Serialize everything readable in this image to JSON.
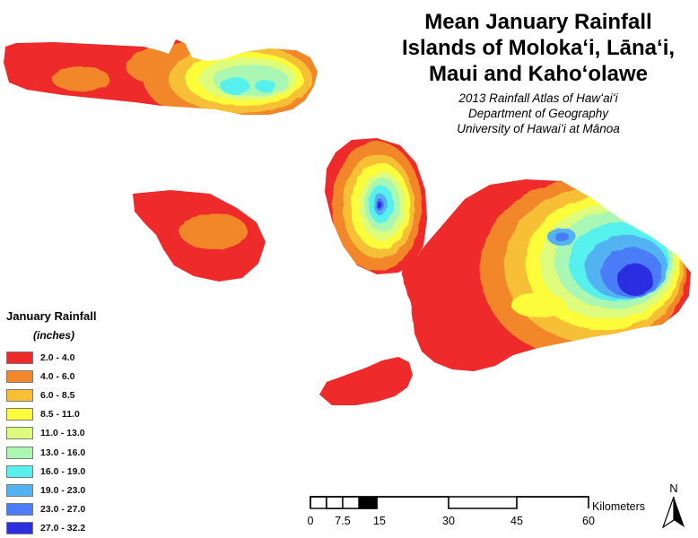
{
  "title": {
    "lines": [
      "Mean January Rainfall",
      "Islands of Molokaʻi, Lānaʻi,",
      "Maui and Kahoʻolawe"
    ],
    "subtitle": [
      "2013 Rainfall Atlas of Hawʻaiʻi",
      "Department of Geography",
      "University of Hawaiʻi at Mānoa"
    ]
  },
  "legend": {
    "title": "January Rainfall",
    "units": "(inches)",
    "classes": [
      {
        "label": "2.0 - 4.0",
        "color": "#ee2a2a"
      },
      {
        "label": "4.0 - 6.0",
        "color": "#f2872c"
      },
      {
        "label": "6.0 - 8.5",
        "color": "#f7bf36"
      },
      {
        "label": "8.5 - 11.0",
        "color": "#fcfc3a"
      },
      {
        "label": "11.0 - 13.0",
        "color": "#ddfc7e"
      },
      {
        "label": "13.0 - 16.0",
        "color": "#a9f7b2"
      },
      {
        "label": "16.0 - 19.0",
        "color": "#57f0ee"
      },
      {
        "label": "19.0 - 23.0",
        "color": "#52b2f2"
      },
      {
        "label": "23.0 - 27.0",
        "color": "#4c7cf7"
      },
      {
        "label": "27.0 - 32.2",
        "color": "#2b2fe0"
      }
    ]
  },
  "scale_bar": {
    "unit": "Kilometers",
    "ticks": [
      "0",
      "7.5",
      "15",
      "30",
      "45",
      "60"
    ]
  },
  "north_arrow": {
    "label": "N"
  }
}
